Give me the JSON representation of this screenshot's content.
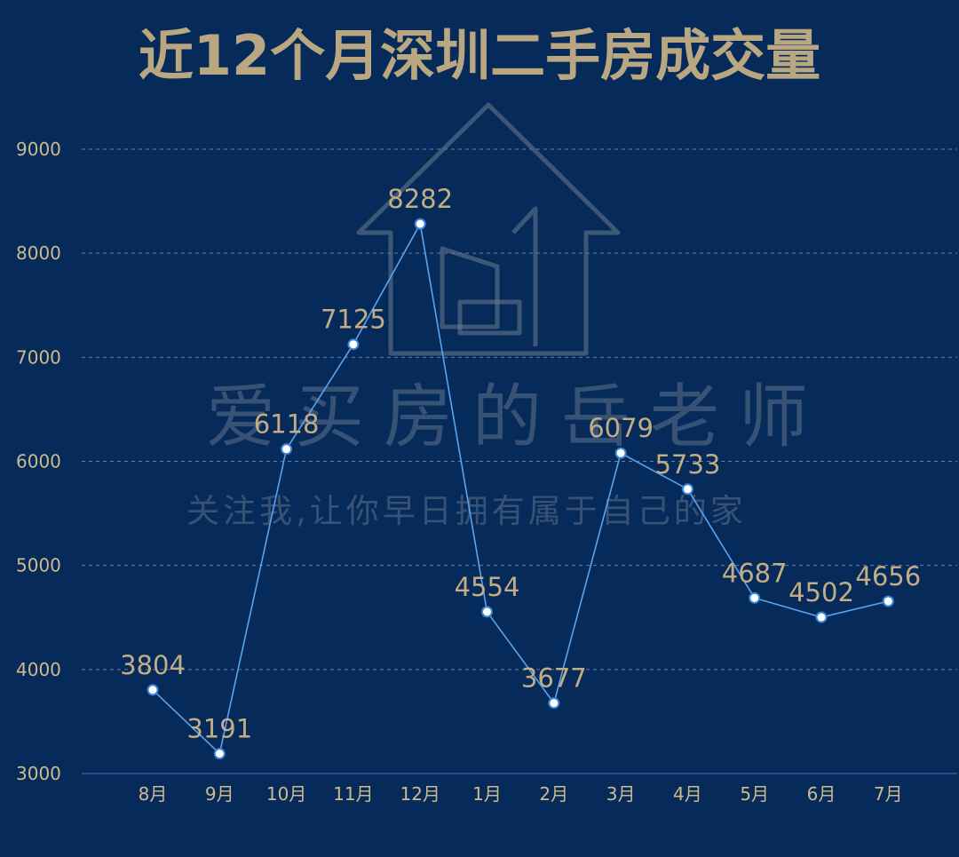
{
  "title": "近12个月深圳二手房成交量",
  "watermark": {
    "brand": "爱买房的岳老师",
    "slogan": "关注我,让你早日拥有属于自己的家",
    "icon": "house-logo-icon"
  },
  "colors": {
    "background": "#062a5a",
    "title": "#b9a781",
    "line": "#5aa3ee",
    "label": "#c2ad84"
  },
  "chart_data": {
    "type": "line",
    "title": "近12个月深圳二手房成交量",
    "xlabel": "",
    "ylabel": "",
    "categories": [
      "8月",
      "9月",
      "10月",
      "11月",
      "12月",
      "1月",
      "2月",
      "3月",
      "4月",
      "5月",
      "6月",
      "7月"
    ],
    "series": [
      {
        "values": [
          3804,
          3191,
          6118,
          7125,
          8282,
          4554,
          3677,
          6079,
          5733,
          4687,
          4502,
          4656
        ]
      }
    ],
    "yticks": [
      "3000",
      "4000",
      "5000",
      "6000",
      "7000",
      "8000",
      "9000"
    ],
    "ylim": [
      3000,
      9000
    ],
    "grid": true,
    "legend": "none",
    "data_labels": true
  }
}
